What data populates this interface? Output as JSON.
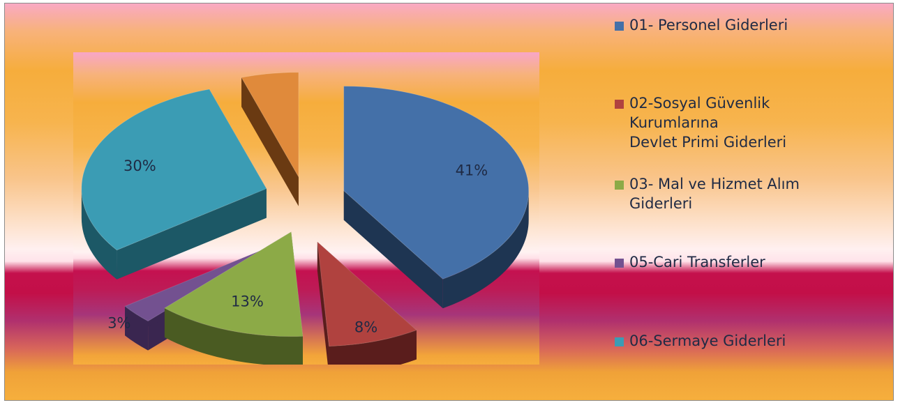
{
  "chart_data": {
    "type": "pie",
    "title": "",
    "slices": [
      {
        "label": "01- Personel  Giderleri",
        "value": 41,
        "data_label": "41%",
        "color": "#4470a8",
        "side_color": "#1e3552"
      },
      {
        "label": "02-Sosyal Güvenlik\nKurumlarına\n Devlet Primi Giderleri",
        "value": 8,
        "data_label": "8%",
        "color": "#b0423f",
        "side_color": "#5a1d1c"
      },
      {
        "label": "03- Mal ve Hizmet Alım\nGiderleri",
        "value": 13,
        "data_label": "13%",
        "color": "#8caa47",
        "side_color": "#4a5b22"
      },
      {
        "label": "05-Cari Transferler",
        "value": 3,
        "data_label": "3%",
        "color": "#735190",
        "side_color": "#3a2650"
      },
      {
        "label": "06-Sermaye Giderleri",
        "value": 30,
        "data_label": "30%",
        "color": "#3b9cb4",
        "side_color": "#1c5866"
      },
      {
        "label": "",
        "value": 5,
        "data_label": "5%",
        "color": "#e08a3b",
        "side_color": "#6a3a12"
      }
    ],
    "exploded": true,
    "three_d": true,
    "legend_position": "right"
  }
}
